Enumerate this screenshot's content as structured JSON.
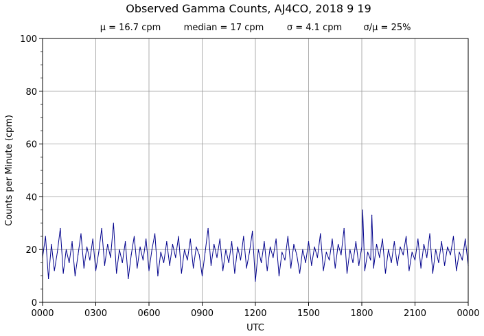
{
  "chart_data": {
    "type": "line",
    "title": "Observed Gamma Counts, AJ4CO, 2018 9 19",
    "subtitle": {
      "mean": "μ = 16.7 cpm",
      "median": "median = 17 cpm",
      "sigma": "σ = 4.1 cpm",
      "ratio": "σ/μ = 25%"
    },
    "xlabel": "UTC",
    "ylabel": "Counts per Minute (cpm)",
    "xlim": [
      0,
      1440
    ],
    "ylim": [
      0,
      100
    ],
    "x_ticks": [
      {
        "value": 0,
        "label": "0000"
      },
      {
        "value": 180,
        "label": "0300"
      },
      {
        "value": 360,
        "label": "0600"
      },
      {
        "value": 540,
        "label": "0900"
      },
      {
        "value": 720,
        "label": "1200"
      },
      {
        "value": 900,
        "label": "1500"
      },
      {
        "value": 1080,
        "label": "1800"
      },
      {
        "value": 1260,
        "label": "2100"
      },
      {
        "value": 1440,
        "label": "0000"
      }
    ],
    "y_ticks": [
      {
        "value": 0,
        "label": "0"
      },
      {
        "value": 20,
        "label": "20"
      },
      {
        "value": 40,
        "label": "40"
      },
      {
        "value": 60,
        "label": "60"
      },
      {
        "value": 80,
        "label": "80"
      },
      {
        "value": 100,
        "label": "100"
      }
    ],
    "grid": true,
    "series": [
      {
        "color": "#00008b",
        "x": [
          0,
          10,
          20,
          30,
          40,
          50,
          60,
          70,
          80,
          90,
          100,
          110,
          120,
          130,
          140,
          150,
          160,
          170,
          180,
          190,
          200,
          210,
          220,
          230,
          240,
          250,
          260,
          270,
          280,
          290,
          300,
          310,
          320,
          330,
          340,
          350,
          360,
          370,
          380,
          390,
          400,
          410,
          420,
          430,
          440,
          450,
          460,
          470,
          480,
          490,
          500,
          510,
          520,
          530,
          540,
          550,
          560,
          570,
          580,
          590,
          600,
          610,
          620,
          630,
          640,
          650,
          660,
          670,
          680,
          690,
          700,
          710,
          720,
          730,
          740,
          750,
          760,
          770,
          780,
          790,
          800,
          810,
          820,
          830,
          840,
          850,
          860,
          870,
          880,
          890,
          900,
          910,
          920,
          930,
          940,
          950,
          960,
          970,
          980,
          990,
          1000,
          1010,
          1020,
          1030,
          1040,
          1050,
          1060,
          1070,
          1080,
          1083,
          1090,
          1100,
          1110,
          1114,
          1120,
          1130,
          1140,
          1150,
          1160,
          1170,
          1180,
          1190,
          1200,
          1210,
          1220,
          1230,
          1240,
          1250,
          1260,
          1270,
          1280,
          1290,
          1300,
          1310,
          1320,
          1330,
          1340,
          1350,
          1360,
          1370,
          1380,
          1390,
          1400,
          1410,
          1420,
          1430,
          1440
        ],
        "values": [
          17,
          25,
          9,
          22,
          12,
          19,
          28,
          11,
          20,
          15,
          23,
          10,
          18,
          26,
          13,
          21,
          16,
          24,
          12,
          19,
          28,
          14,
          22,
          17,
          30,
          11,
          20,
          15,
          23,
          9,
          18,
          25,
          13,
          21,
          16,
          24,
          12,
          20,
          26,
          10,
          19,
          15,
          23,
          14,
          22,
          17,
          25,
          11,
          20,
          16,
          24,
          13,
          21,
          18,
          10,
          19,
          28,
          14,
          22,
          17,
          24,
          12,
          20,
          15,
          23,
          11,
          21,
          16,
          25,
          13,
          19,
          27,
          8,
          20,
          15,
          23,
          12,
          21,
          17,
          24,
          10,
          19,
          16,
          25,
          13,
          22,
          18,
          11,
          20,
          15,
          23,
          14,
          21,
          17,
          26,
          12,
          19,
          16,
          24,
          13,
          22,
          18,
          28,
          11,
          20,
          15,
          23,
          14,
          21,
          35,
          12,
          19,
          16,
          33,
          13,
          22,
          17,
          24,
          11,
          20,
          15,
          23,
          14,
          21,
          18,
          25,
          12,
          19,
          16,
          24,
          13,
          22,
          17,
          26,
          11,
          20,
          15,
          23,
          14,
          21,
          18,
          25,
          12,
          19,
          16,
          24,
          14
        ]
      }
    ]
  }
}
